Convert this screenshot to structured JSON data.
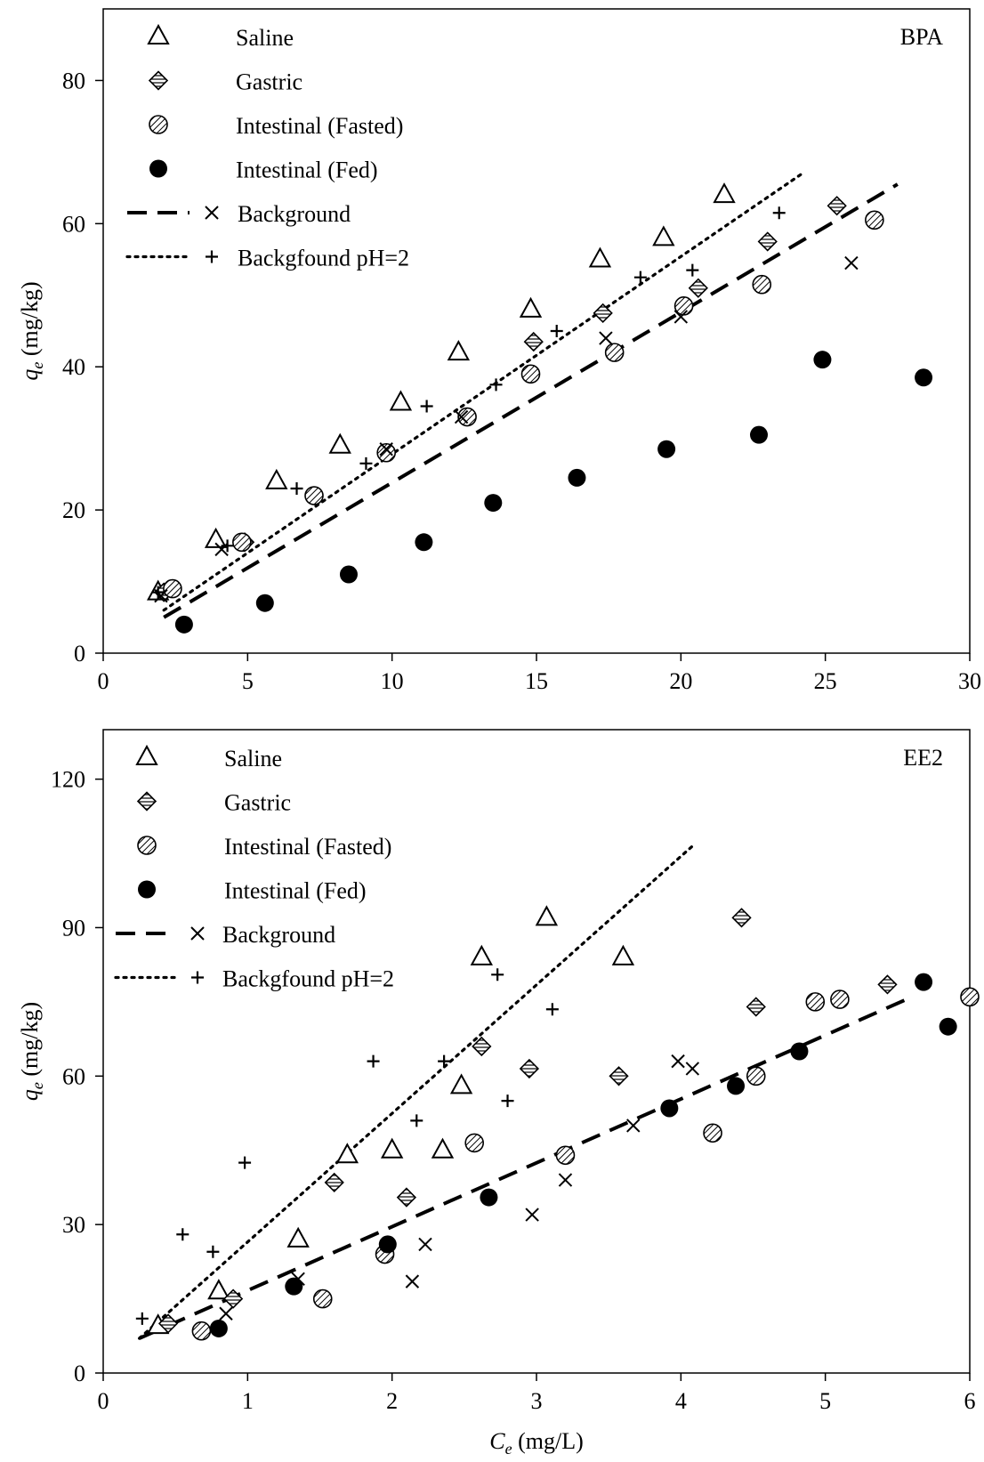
{
  "chart_data": [
    {
      "type": "scatter",
      "panel_label": "BPA",
      "xlabel": "",
      "ylabel_symbol": "q",
      "ylabel_sub": "e",
      "ylabel_unit": " (mg/kg)",
      "xlim": [
        0,
        30
      ],
      "ylim": [
        0,
        90
      ],
      "xticks": [
        0,
        5,
        10,
        15,
        20,
        25,
        30
      ],
      "yticks": [
        0,
        20,
        40,
        60,
        80
      ],
      "grid": false,
      "legend_position": "top-left",
      "legend": [
        {
          "marker": "triangle",
          "label": "Saline"
        },
        {
          "marker": "diamond-hatched",
          "label": "Gastric"
        },
        {
          "marker": "circle-hatched",
          "label": "Intestinal (Fasted)"
        },
        {
          "marker": "circle-filled",
          "label": "Intestinal (Fed)"
        },
        {
          "line": "dashed",
          "marker": "x",
          "label": "Background"
        },
        {
          "line": "dotted",
          "marker": "plus",
          "label": "Backgfound pH=2"
        }
      ],
      "series": [
        {
          "name": "Saline",
          "marker": "triangle",
          "points": [
            [
              1.9,
              8.5
            ],
            [
              3.9,
              15.8
            ],
            [
              6,
              24
            ],
            [
              8.2,
              29
            ],
            [
              10.3,
              35
            ],
            [
              12.3,
              42
            ],
            [
              14.8,
              48
            ],
            [
              17.2,
              55
            ],
            [
              19.4,
              58
            ],
            [
              21.5,
              64
            ]
          ]
        },
        {
          "name": "Gastric",
          "marker": "diamond-hatched",
          "points": [
            [
              2.1,
              8.5
            ],
            [
              4.9,
              15.5
            ],
            [
              14.9,
              43.5
            ],
            [
              17.3,
              47.5
            ],
            [
              20.6,
              51
            ],
            [
              23,
              57.5
            ],
            [
              25.4,
              62.5
            ]
          ]
        },
        {
          "name": "Intestinal (Fasted)",
          "marker": "circle-hatched",
          "points": [
            [
              2.4,
              9
            ],
            [
              4.8,
              15.5
            ],
            [
              7.3,
              22
            ],
            [
              9.8,
              28
            ],
            [
              12.6,
              33
            ],
            [
              14.8,
              39
            ],
            [
              17.7,
              42
            ],
            [
              20.1,
              48.5
            ],
            [
              22.8,
              51.5
            ],
            [
              26.7,
              60.5
            ]
          ]
        },
        {
          "name": "Intestinal (Fed)",
          "marker": "circle-filled",
          "points": [
            [
              2.8,
              4
            ],
            [
              5.6,
              7
            ],
            [
              8.5,
              11
            ],
            [
              11.1,
              15.5
            ],
            [
              13.5,
              21
            ],
            [
              16.4,
              24.5
            ],
            [
              19.5,
              28.5
            ],
            [
              22.7,
              30.5
            ],
            [
              24.9,
              41
            ],
            [
              28.4,
              38.5
            ]
          ]
        },
        {
          "name": "Background",
          "marker": "x",
          "points": [
            [
              2,
              8
            ],
            [
              4.1,
              14.5
            ],
            [
              9.8,
              28.5
            ],
            [
              12.4,
              33
            ],
            [
              17.4,
              44
            ],
            [
              20,
              47
            ],
            [
              25.9,
              54.5
            ]
          ]
        },
        {
          "name": "Backgfound pH=2",
          "marker": "plus",
          "points": [
            [
              1.9,
              8.5
            ],
            [
              4.3,
              15
            ],
            [
              6.7,
              23
            ],
            [
              9.1,
              26.5
            ],
            [
              11.2,
              34.5
            ],
            [
              13.6,
              37.5
            ],
            [
              15.7,
              45
            ],
            [
              18.6,
              52.5
            ],
            [
              20.4,
              53.5
            ],
            [
              23.4,
              61.5
            ]
          ]
        }
      ],
      "fit_lines": [
        {
          "name": "Background",
          "style": "dashed",
          "x": [
            2.1,
            27.5
          ],
          "y": [
            5,
            65.5
          ]
        },
        {
          "name": "Backgfound pH=2",
          "style": "dotted",
          "x": [
            2.1,
            24.2
          ],
          "y": [
            6,
            67
          ]
        }
      ]
    },
    {
      "type": "scatter",
      "panel_label": "EE2",
      "xlabel_symbol": "C",
      "xlabel_sub": "e",
      "xlabel_unit": " (mg/L)",
      "ylabel_symbol": "q",
      "ylabel_sub": "e",
      "ylabel_unit": " (mg/kg)",
      "xlim": [
        0,
        6
      ],
      "ylim": [
        0,
        130
      ],
      "xticks": [
        0,
        1,
        2,
        3,
        4,
        5,
        6
      ],
      "yticks": [
        0,
        30,
        60,
        90,
        120
      ],
      "grid": false,
      "legend_position": "top-left",
      "legend": [
        {
          "marker": "triangle",
          "label": "Saline"
        },
        {
          "marker": "diamond-hatched",
          "label": "Gastric"
        },
        {
          "marker": "circle-hatched",
          "label": "Intestinal (Fasted)"
        },
        {
          "marker": "circle-filled",
          "label": "Intestinal (Fed)"
        },
        {
          "line": "dashed",
          "marker": "x",
          "label": "Background"
        },
        {
          "line": "dotted",
          "marker": "plus",
          "label": "Backgfound pH=2"
        }
      ],
      "series": [
        {
          "name": "Saline",
          "marker": "triangle",
          "points": [
            [
              0.38,
              9.5
            ],
            [
              0.8,
              16.5
            ],
            [
              1.35,
              27
            ],
            [
              1.69,
              44
            ],
            [
              2,
              45
            ],
            [
              2.35,
              45
            ],
            [
              2.48,
              58
            ],
            [
              2.62,
              84
            ],
            [
              3.07,
              92
            ],
            [
              3.6,
              84
            ]
          ]
        },
        {
          "name": "Gastric",
          "marker": "diamond-hatched",
          "points": [
            [
              0.45,
              10
            ],
            [
              0.9,
              15
            ],
            [
              1.6,
              38.5
            ],
            [
              2.1,
              35.5
            ],
            [
              2.62,
              66
            ],
            [
              2.95,
              61.5
            ],
            [
              3.57,
              60
            ],
            [
              4.42,
              92
            ],
            [
              4.52,
              74
            ],
            [
              5.43,
              78.5
            ]
          ]
        },
        {
          "name": "Intestinal (Fasted)",
          "marker": "circle-hatched",
          "points": [
            [
              0.68,
              8.5
            ],
            [
              1.52,
              15
            ],
            [
              1.95,
              24
            ],
            [
              2.57,
              46.5
            ],
            [
              3.2,
              44
            ],
            [
              4.22,
              48.5
            ],
            [
              4.52,
              60
            ],
            [
              4.93,
              75
            ],
            [
              5.1,
              75.5
            ],
            [
              6,
              76
            ]
          ]
        },
        {
          "name": "Intestinal (Fed)",
          "marker": "circle-filled",
          "points": [
            [
              0.8,
              9
            ],
            [
              1.32,
              17.5
            ],
            [
              1.97,
              26
            ],
            [
              2.67,
              35.5
            ],
            [
              3.92,
              53.5
            ],
            [
              4.38,
              58
            ],
            [
              4.82,
              65
            ],
            [
              5.68,
              79
            ],
            [
              5.85,
              70
            ]
          ]
        },
        {
          "name": "Background",
          "marker": "x",
          "points": [
            [
              0.85,
              12
            ],
            [
              1.35,
              19
            ],
            [
              2.14,
              18.5
            ],
            [
              2.23,
              26
            ],
            [
              2.97,
              32
            ],
            [
              3.2,
              39
            ],
            [
              3.67,
              50
            ],
            [
              3.98,
              63
            ],
            [
              4.08,
              61.5
            ]
          ]
        },
        {
          "name": "Backgfound pH=2",
          "marker": "plus",
          "points": [
            [
              0.27,
              11
            ],
            [
              0.55,
              28
            ],
            [
              0.76,
              24.5
            ],
            [
              0.98,
              42.5
            ],
            [
              1.87,
              63
            ],
            [
              2.17,
              51
            ],
            [
              2.36,
              63
            ],
            [
              2.73,
              80.5
            ],
            [
              2.8,
              55
            ],
            [
              3.11,
              73.5
            ]
          ]
        }
      ],
      "fit_lines": [
        {
          "name": "Background",
          "style": "dashed",
          "x": [
            0.25,
            5.6
          ],
          "y": [
            7,
            76
          ]
        },
        {
          "name": "Backgfound pH=2",
          "style": "dotted",
          "x": [
            0.25,
            4.1
          ],
          "y": [
            7,
            107
          ]
        }
      ]
    }
  ]
}
